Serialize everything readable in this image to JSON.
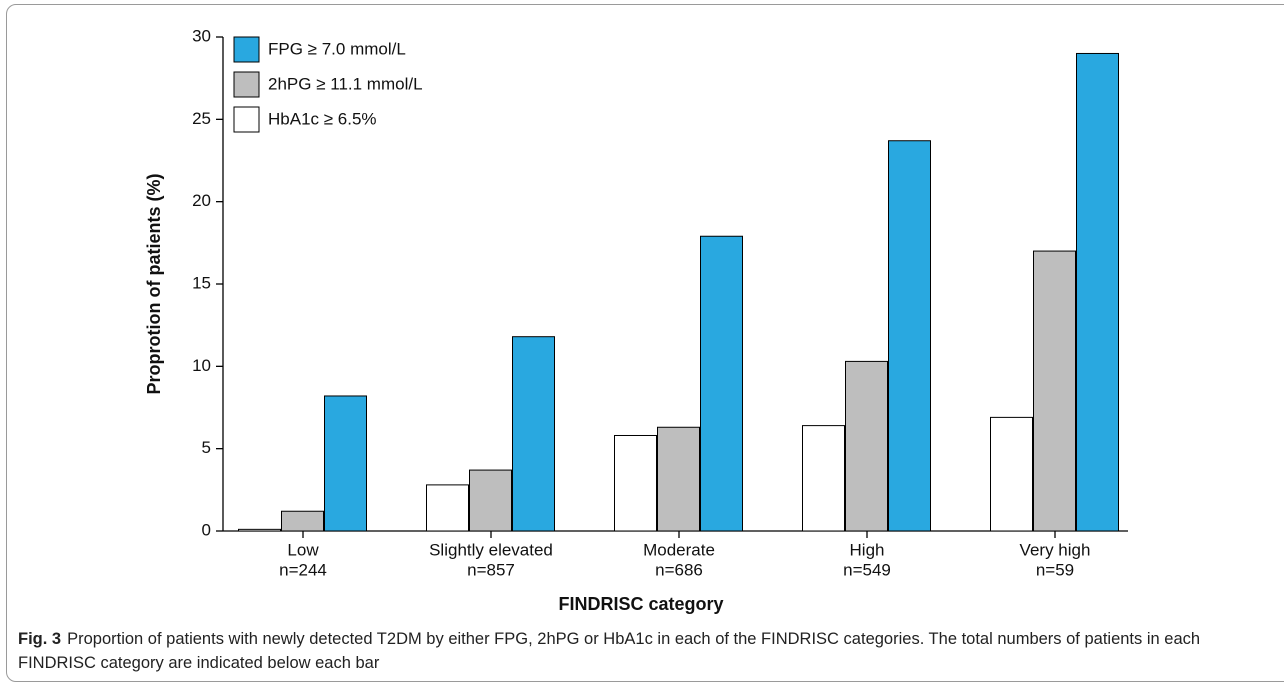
{
  "chart_data": {
    "type": "bar",
    "ylabel": "Proprotion of patients (%)",
    "xlabel": "FINDRISC category",
    "categories": [
      "Low",
      "Slightly elevated",
      "Moderate",
      "High",
      "Very high"
    ],
    "category_counts": [
      "n=244",
      "n=857",
      "n=686",
      "n=549",
      "n=59"
    ],
    "series": [
      {
        "name": "HbA1c ≥ 6.5%",
        "color": "#ffffff",
        "values": [
          0.1,
          2.8,
          5.8,
          6.4,
          6.9
        ]
      },
      {
        "name": "2hPG ≥ 11.1 mmol/L",
        "color": "#bebebe",
        "values": [
          1.2,
          3.7,
          6.3,
          10.3,
          17.0
        ]
      },
      {
        "name": "FPG ≥ 7.0 mmol/L",
        "color": "#29a8e0",
        "values": [
          8.2,
          11.8,
          17.9,
          23.7,
          29.0
        ]
      }
    ],
    "ylim": [
      0,
      30
    ],
    "yticks": [
      0,
      5,
      10,
      15,
      20,
      25,
      30
    ]
  },
  "caption": {
    "label": "Fig. 3",
    "text": "Proportion of patients with newly detected T2DM by either FPG, 2hPG or HbA1c in each of the FINDRISC categories. The total numbers of patients in each FINDRISC category are indicated below each bar"
  }
}
